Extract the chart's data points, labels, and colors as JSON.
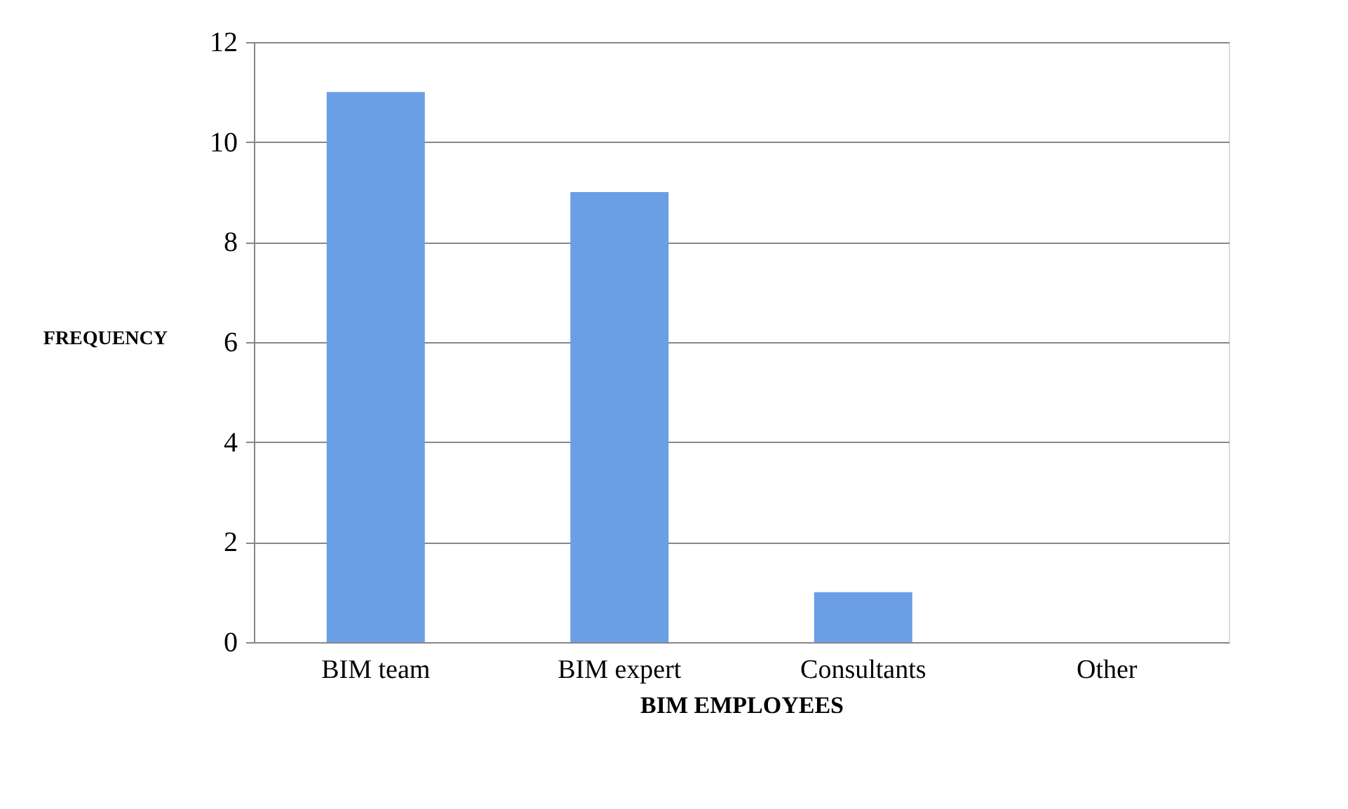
{
  "chart_data": {
    "type": "bar",
    "categories": [
      "BIM team",
      "BIM expert",
      "Consultants",
      "Other"
    ],
    "values": [
      11,
      9,
      1,
      0
    ],
    "color": "#6a9fe6",
    "xlabel": "BIM EMPLOYEES",
    "ylabel": "FREQUENCY",
    "ylim": [
      0,
      12
    ],
    "yticks": [
      0,
      2,
      4,
      6,
      8,
      10,
      12
    ],
    "grid": "y"
  }
}
